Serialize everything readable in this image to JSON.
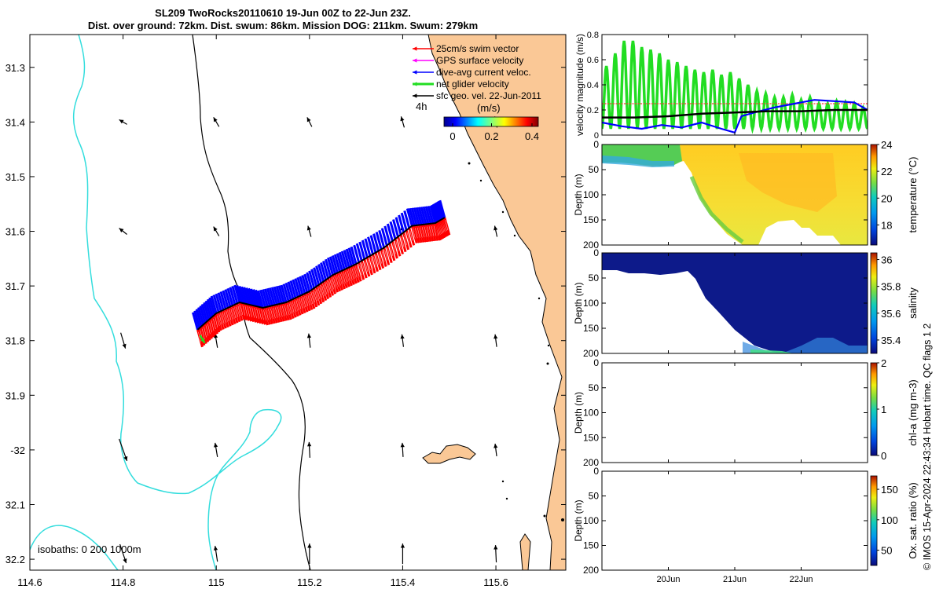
{
  "title": "SL209 TwoRocks20110610 19-Jun 00Z to 22-Jun 23Z.",
  "subtitle": "Dist. over ground: 72km. Dist. swum: 86km. Mission DOG: 211km. Swum: 279km",
  "credit": "© IMOS 15-Apr-2024 22:43:34 Hobart time. QC flags 1  2",
  "colors": {
    "land": "#fac896",
    "isobath_200": "#33dddd",
    "isobath_1000": "#000000",
    "swim_vector": "#ff0000",
    "gps_velocity": "#ff00ff",
    "current": "#0000ff",
    "glider_velocity": "#22dd22",
    "geostrophic": "#000000"
  },
  "chart_data": [
    {
      "type": "map",
      "name": "track map",
      "xlim": [
        114.6,
        115.75
      ],
      "ylim": [
        -32.22,
        -31.24
      ],
      "xticks": [
        114.6,
        114.8,
        115,
        115.2,
        115.4,
        115.6
      ],
      "xtick_labels": [
        "114.6",
        "114.8",
        "115",
        "115.2",
        "115.4",
        "115.6"
      ],
      "yticks": [
        -31.3,
        -31.4,
        -31.5,
        -31.6,
        -31.7,
        -31.8,
        -31.9,
        -32.0,
        -32.1,
        -32.2
      ],
      "ytick_labels": [
        "31.3",
        "31.4",
        "31.5",
        "31.6",
        "31.7",
        "31.8",
        "31.9",
        "-32",
        "32.1",
        "32.2"
      ],
      "legend": [
        "25cm/s swim vector",
        "GPS surface velocity",
        "dive-avg current veloc.",
        "net glider velocity",
        "sfc geo. vel. 22-Jun-2011"
      ],
      "legend_position": "top-right",
      "time_step_label": "4h",
      "colorbar_label": "(m/s)",
      "colorbar_ticks": [
        0,
        0.2,
        0.4
      ],
      "colorbar_tick_labels": [
        "0",
        "0.2",
        "0.4"
      ],
      "isobaths_label": "isobaths: 0    200   1000m",
      "glider_track": [
        [
          114.96,
          -31.78
        ],
        [
          115.0,
          -31.75
        ],
        [
          115.05,
          -31.73
        ],
        [
          115.1,
          -31.74
        ],
        [
          115.15,
          -31.73
        ],
        [
          115.2,
          -31.71
        ],
        [
          115.25,
          -31.68
        ],
        [
          115.3,
          -31.66
        ],
        [
          115.36,
          -31.63
        ],
        [
          115.42,
          -31.59
        ],
        [
          115.47,
          -31.585
        ],
        [
          115.49,
          -31.575
        ]
      ],
      "geostrophic_grid": {
        "lons": [
          114.8,
          115.0,
          115.2,
          115.4,
          115.6
        ],
        "lats": [
          -31.4,
          -31.6,
          -31.8,
          -32.0,
          -32.19
        ]
      }
    },
    {
      "type": "line",
      "name": "velocity magnitude",
      "ylabel": "velocity magnitude (m/s)",
      "ylim": [
        0,
        0.8
      ],
      "yticks": [
        0,
        0.2,
        0.4,
        0.6,
        0.8
      ],
      "xlim_days": [
        0,
        4
      ],
      "series": [
        {
          "name": "swim vector",
          "x": [
            0,
            4
          ],
          "values": [
            0.25,
            0.25
          ]
        },
        {
          "name": "dive-avg current",
          "x": [
            0,
            0.3,
            0.6,
            0.9,
            1.2,
            1.5,
            1.8,
            2.0,
            2.1,
            2.3,
            2.6,
            2.9,
            3.2,
            3.5,
            3.8,
            4.0
          ],
          "values": [
            0.1,
            0.07,
            0.05,
            0.08,
            0.06,
            0.1,
            0.05,
            0.02,
            0.15,
            0.18,
            0.22,
            0.25,
            0.28,
            0.27,
            0.26,
            0.2
          ]
        },
        {
          "name": "net glider velocity",
          "x": [
            0,
            0.5,
            1.0,
            1.5,
            2.0,
            2.5,
            3.0,
            3.5,
            4.0
          ],
          "values": [
            0.14,
            0.14,
            0.15,
            0.17,
            0.18,
            0.19,
            0.19,
            0.2,
            0.2
          ]
        },
        {
          "name": "glider speed oscillation",
          "peaks": [
            0.55,
            0.65,
            0.75,
            0.75,
            0.7,
            0.68,
            0.65,
            0.6,
            0.58,
            0.55,
            0.52,
            0.5,
            0.52,
            0.48,
            0.5,
            0.45,
            0.4,
            0.35,
            0.33,
            0.3,
            0.3,
            0.32,
            0.28,
            0.3,
            0.25,
            0.25,
            0.27,
            0.26,
            0.25,
            0.22
          ]
        }
      ]
    },
    {
      "type": "heatmap",
      "name": "temperature",
      "ylabel": "Depth (m)",
      "ylim": [
        200,
        0
      ],
      "yticks": [
        0,
        50,
        100,
        150,
        200
      ],
      "colorbar_label": "temperature (°C)",
      "colorbar_range": [
        16.5,
        24
      ],
      "colorbar_ticks": [
        18,
        20,
        22,
        24
      ]
    },
    {
      "type": "heatmap",
      "name": "salinity",
      "ylabel": "Depth (m)",
      "ylim": [
        200,
        0
      ],
      "yticks": [
        0,
        50,
        100,
        150,
        200
      ],
      "colorbar_label": "salinity",
      "colorbar_range": [
        35.3,
        36.05
      ],
      "colorbar_ticks": [
        35.4,
        35.6,
        35.8,
        36
      ]
    },
    {
      "type": "heatmap",
      "name": "chlorophyll",
      "ylabel": "Depth (m)",
      "ylim": [
        200,
        0
      ],
      "yticks": [
        0,
        50,
        100,
        150,
        200
      ],
      "colorbar_label": "chl-a (mg m-3)",
      "colorbar_range": [
        0,
        2
      ],
      "colorbar_ticks": [
        0,
        1,
        2
      ]
    },
    {
      "type": "heatmap",
      "name": "oxygen saturation",
      "ylabel": "Depth (m)",
      "ylim": [
        200,
        0
      ],
      "yticks": [
        0,
        50,
        100,
        150,
        200
      ],
      "colorbar_label": "Ox. sat. ratio (%)",
      "colorbar_range": [
        25,
        172
      ],
      "colorbar_ticks": [
        50,
        100,
        150
      ],
      "xticks_days": [
        1,
        2,
        3
      ],
      "xtick_labels": [
        "20Jun",
        "21Jun",
        "22Jun"
      ]
    }
  ]
}
